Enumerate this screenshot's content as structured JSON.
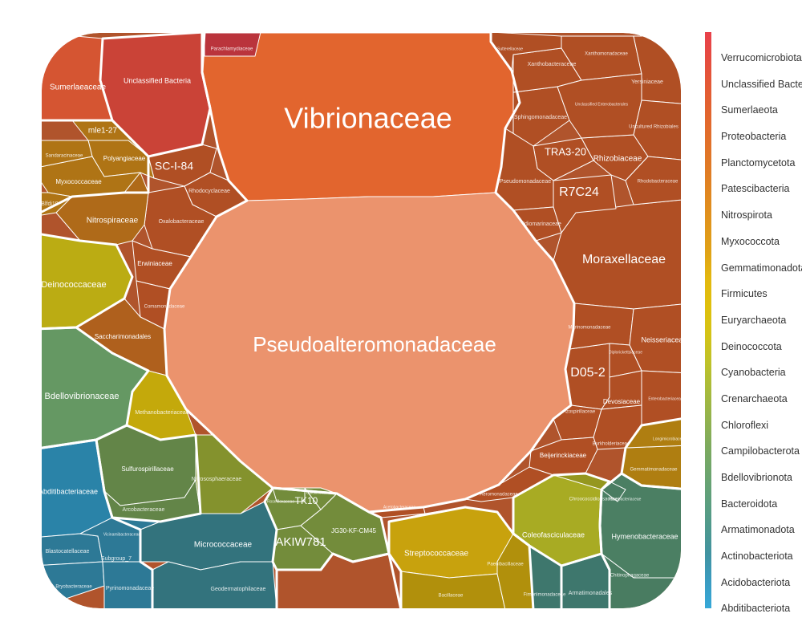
{
  "chart_data": {
    "type": "voronoi-treemap",
    "legend": {
      "placement": "right",
      "phyla": [
        {
          "name": "Verrucomicrobiota",
          "color": "#e8414b"
        },
        {
          "name": "Unclassified Bacteria",
          "color": "#e54c3f"
        },
        {
          "name": "Sumerlaeota",
          "color": "#e35a35"
        },
        {
          "name": "Proteobacteria",
          "color": "#e2652e"
        },
        {
          "name": "Planctomycetota",
          "color": "#e1702a"
        },
        {
          "name": "Patescibacteria",
          "color": "#e07b25"
        },
        {
          "name": "Nitrospirota",
          "color": "#e08820"
        },
        {
          "name": "Myxococcota",
          "color": "#e0951b"
        },
        {
          "name": "Gemmatimonadota",
          "color": "#e0a216"
        },
        {
          "name": "Firmicutes",
          "color": "#e3b80f"
        },
        {
          "name": "Euryarchaeota",
          "color": "#dfc00c"
        },
        {
          "name": "Deinococcota",
          "color": "#d4c316"
        },
        {
          "name": "Cyanobacteria",
          "color": "#bfc228"
        },
        {
          "name": "Crenarchaeota",
          "color": "#a9bb3a"
        },
        {
          "name": "Chloroflexi",
          "color": "#94b34c"
        },
        {
          "name": "Campilobacterota",
          "color": "#7fab5c"
        },
        {
          "name": "Bdellovibrionota",
          "color": "#6ea56c"
        },
        {
          "name": "Bacteroidota",
          "color": "#5e9f7c"
        },
        {
          "name": "Armatimonadota",
          "color": "#4f998c"
        },
        {
          "name": "Actinobacteriota",
          "color": "#4193a0"
        },
        {
          "name": "Acidobacteriota",
          "color": "#3a9bc0"
        },
        {
          "name": "Abditibacteriota",
          "color": "#36a8d8"
        }
      ]
    },
    "cells": [
      {
        "label": "Vibrionaceae",
        "phylum": "Proteobacteria"
      },
      {
        "label": "Pseudoalteromonadaceae",
        "phylum": "Proteobacteria"
      },
      {
        "label": "Moraxellaceae",
        "phylum": "Proteobacteria"
      },
      {
        "label": "R7C24",
        "phylum": "Proteobacteria"
      },
      {
        "label": "TRA3-20",
        "phylum": "Proteobacteria"
      },
      {
        "label": "D05-2",
        "phylum": "Proteobacteria"
      },
      {
        "label": "Rhizobiaceae",
        "phylum": "Proteobacteria"
      },
      {
        "label": "Sphingomonadaceae",
        "phylum": "Proteobacteria"
      },
      {
        "label": "Pseudomonadaceae",
        "phylum": "Proteobacteria"
      },
      {
        "label": "Idiomarinaceae",
        "phylum": "Proteobacteria"
      },
      {
        "label": "Xanthobacteraceae",
        "phylum": "Proteobacteria"
      },
      {
        "label": "Xanthomonadaceae",
        "phylum": "Proteobacteria"
      },
      {
        "label": "Yersiniaceae",
        "phylum": "Proteobacteria"
      },
      {
        "label": "Unclassified Enterobacterales",
        "phylum": "Proteobacteria"
      },
      {
        "label": "Uncultured Rhizobiales",
        "phylum": "Proteobacteria"
      },
      {
        "label": "Rhodobacteraceae",
        "phylum": "Proteobacteria"
      },
      {
        "label": "Sutterellaceae",
        "phylum": "Proteobacteria"
      },
      {
        "label": "Marinomonadaceae",
        "phylum": "Proteobacteria"
      },
      {
        "label": "Neisseriaceae",
        "phylum": "Proteobacteria"
      },
      {
        "label": "Diplorickettsiaceae",
        "phylum": "Proteobacteria"
      },
      {
        "label": "Devosiaceae",
        "phylum": "Proteobacteria"
      },
      {
        "label": "Enterobacteriaceae",
        "phylum": "Proteobacteria"
      },
      {
        "label": "Azospirillaceae",
        "phylum": "Proteobacteria"
      },
      {
        "label": "Burkholderiaceae",
        "phylum": "Proteobacteria"
      },
      {
        "label": "Beijerinckiaceae",
        "phylum": "Proteobacteria"
      },
      {
        "label": "Aeromonadaceae",
        "phylum": "Proteobacteria"
      },
      {
        "label": "Acetobacteraceae",
        "phylum": "Proteobacteria"
      },
      {
        "label": "SC-I-84",
        "phylum": "Proteobacteria"
      },
      {
        "label": "Rhodocyclaceae",
        "phylum": "Proteobacteria"
      },
      {
        "label": "Oxalobacteraceae",
        "phylum": "Proteobacteria"
      },
      {
        "label": "Erwiniaceae",
        "phylum": "Proteobacteria"
      },
      {
        "label": "Comamonadaceae",
        "phylum": "Proteobacteria"
      },
      {
        "label": "Unclassified Bacteria",
        "phylum": "Unclassified Bacteria"
      },
      {
        "label": "Parachlamydiaceae",
        "phylum": "Verrucomicrobiota"
      },
      {
        "label": "Sumerlaeaceae",
        "phylum": "Sumerlaeota"
      },
      {
        "label": "mle1-27",
        "phylum": "Myxococcota"
      },
      {
        "label": "Polyangiaceae",
        "phylum": "Myxococcota"
      },
      {
        "label": "Myxococcaceae",
        "phylum": "Myxococcota"
      },
      {
        "label": "Sandaracinaceae",
        "phylum": "Myxococcota"
      },
      {
        "label": "Blfdi19",
        "phylum": "Myxococcota"
      },
      {
        "label": "Nitrospiraceae",
        "phylum": "Nitrospirota"
      },
      {
        "label": "Deinococcaceae",
        "phylum": "Deinococcota"
      },
      {
        "label": "Saccharimonadales",
        "phylum": "Patescibacteria"
      },
      {
        "label": "Bdellovibrionaceae",
        "phylum": "Bdellovibrionota"
      },
      {
        "label": "Methanobacteriaceae",
        "phylum": "Euryarchaeota"
      },
      {
        "label": "Sulfurospirillaceae",
        "phylum": "Campilobacterota"
      },
      {
        "label": "Arcobacteraceae",
        "phylum": "Campilobacterota"
      },
      {
        "label": "Nitrososphaeraceae",
        "phylum": "Crenarchaeota"
      },
      {
        "label": "Abditibacteriaceae",
        "phylum": "Abditibacteriota"
      },
      {
        "label": "Blastocatellaceae",
        "phylum": "Acidobacteriota"
      },
      {
        "label": "Subgroup_7",
        "phylum": "Acidobacteriota"
      },
      {
        "label": "Vicinamibacteraceae",
        "phylum": "Acidobacteriota"
      },
      {
        "label": "Bryobacteraceae",
        "phylum": "Acidobacteriota"
      },
      {
        "label": "Pyrinomonadaceae",
        "phylum": "Acidobacteriota"
      },
      {
        "label": "Micrococcaceae",
        "phylum": "Actinobacteriota"
      },
      {
        "label": "Geodermatophilaceae",
        "phylum": "Actinobacteriota"
      },
      {
        "label": "TK10",
        "phylum": "Chloroflexi"
      },
      {
        "label": "AKIW781",
        "phylum": "Chloroflexi"
      },
      {
        "label": "JG30-KF-CM45",
        "phylum": "Chloroflexi"
      },
      {
        "label": "Roseiflexaceae",
        "phylum": "Chloroflexi"
      },
      {
        "label": "Caldilineaceae",
        "phylum": "Chloroflexi"
      },
      {
        "label": "Streptococcaceae",
        "phylum": "Firmicutes"
      },
      {
        "label": "Bacillaceae",
        "phylum": "Firmicutes"
      },
      {
        "label": "Paenibacillaceae",
        "phylum": "Firmicutes"
      },
      {
        "label": "Coleofasciculaceae",
        "phylum": "Cyanobacteria"
      },
      {
        "label": "Chroococcidiopsaceae",
        "phylum": "Cyanobacteria"
      },
      {
        "label": "Gemmatimonadaceae",
        "phylum": "Gemmatimonadota"
      },
      {
        "label": "Longimicrobiaceae",
        "phylum": "Gemmatimonadota"
      },
      {
        "label": "Hymenobacteraceae",
        "phylum": "Bacteroidota"
      },
      {
        "label": "Chitinophagaceae",
        "phylum": "Bacteroidota"
      },
      {
        "label": "Flavobacteriaceae",
        "phylum": "Bacteroidota"
      },
      {
        "label": "Armatimonadales",
        "phylum": "Armatimonadota"
      },
      {
        "label": "Fimbriimonadaceae",
        "phylum": "Armatimonadota"
      }
    ]
  }
}
